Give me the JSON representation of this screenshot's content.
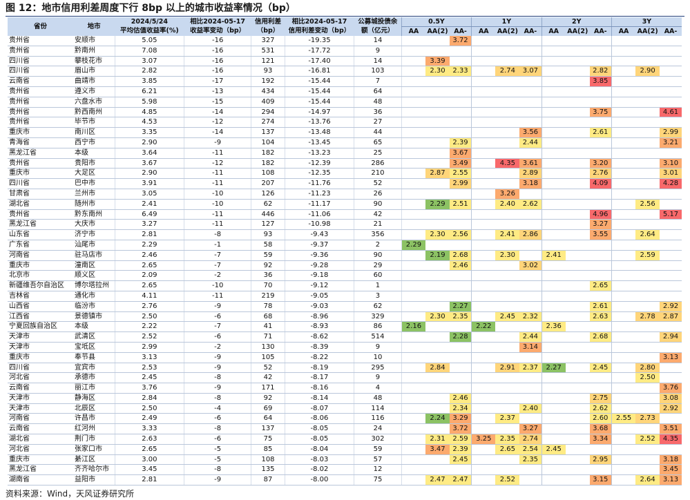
{
  "title": "图 12：地市信用利差周度下行 8bp 以上的城市收益率情况（bp）",
  "source": "资料来源：Wind，天风证券研究所",
  "header": {
    "province": "省份",
    "city": "地市",
    "c1_top": "2024/5/24",
    "c1_bottom": "平均估值收益率(%)",
    "c2_top": "相比2024-05-17",
    "c2_bottom": "收益率变动（bp）",
    "c3_top": "信用利差",
    "c3_bottom": "（bp）",
    "c4_top": "相比2024-05-17",
    "c4_bottom": "信用利差变动（bp）",
    "c5_top": "公募城投债余",
    "c5_bottom": "额（亿元）",
    "groups": [
      "0.5Y",
      "1Y",
      "2Y",
      "3Y"
    ],
    "ratings": [
      "AA",
      "AA(2)",
      "AA-"
    ]
  },
  "colors": {
    "header_bg": "#c9d9ef",
    "title_rule": "#1f3d7a",
    "scale": [
      "#8cc264",
      "#ffeb84",
      "#ffd57a",
      "#fcaa6e",
      "#f8696b"
    ]
  },
  "rows": [
    {
      "p": "贵州省",
      "c": "安顺市",
      "y": "5.05",
      "yc": "-16",
      "s": "327",
      "sc": "-19.35",
      "b": "14",
      "v": [
        "",
        "",
        "3.72",
        "",
        "",
        "",
        "",
        "",
        "",
        "",
        "",
        ""
      ]
    },
    {
      "p": "贵州省",
      "c": "黔南州",
      "y": "7.08",
      "yc": "-16",
      "s": "531",
      "sc": "-17.72",
      "b": "9",
      "v": [
        "",
        "",
        "",
        "",
        "",
        "",
        "",
        "",
        "",
        "",
        "",
        ""
      ]
    },
    {
      "p": "四川省",
      "c": "攀枝花市",
      "y": "3.07",
      "yc": "-16",
      "s": "121",
      "sc": "-17.40",
      "b": "14",
      "v": [
        "",
        "3.39",
        "",
        "",
        "",
        "",
        "",
        "",
        "",
        "",
        "",
        ""
      ]
    },
    {
      "p": "四川省",
      "c": "眉山市",
      "y": "2.82",
      "yc": "-16",
      "s": "93",
      "sc": "-16.81",
      "b": "103",
      "v": [
        "",
        "2.30",
        "2.33",
        "",
        "2.74",
        "3.07",
        "",
        "",
        "2.82",
        "",
        "2.90",
        ""
      ]
    },
    {
      "p": "云南省",
      "c": "曲靖市",
      "y": "3.85",
      "yc": "-17",
      "s": "192",
      "sc": "-15.44",
      "b": "7",
      "v": [
        "",
        "",
        "",
        "",
        "",
        "",
        "",
        "",
        "3.85",
        "",
        "",
        ""
      ]
    },
    {
      "p": "贵州省",
      "c": "遵义市",
      "y": "6.21",
      "yc": "-13",
      "s": "434",
      "sc": "-15.44",
      "b": "64",
      "v": [
        "",
        "",
        "",
        "",
        "",
        "",
        "",
        "",
        "",
        "",
        "",
        ""
      ]
    },
    {
      "p": "贵州省",
      "c": "六盘水市",
      "y": "5.98",
      "yc": "-15",
      "s": "409",
      "sc": "-15.44",
      "b": "48",
      "v": [
        "",
        "",
        "",
        "",
        "",
        "",
        "",
        "",
        "",
        "",
        "",
        ""
      ]
    },
    {
      "p": "贵州省",
      "c": "黔西南州",
      "y": "4.85",
      "yc": "-14",
      "s": "294",
      "sc": "-14.97",
      "b": "36",
      "v": [
        "",
        "",
        "",
        "",
        "",
        "",
        "",
        "",
        "3.75",
        "",
        "",
        "4.61"
      ]
    },
    {
      "p": "贵州省",
      "c": "毕节市",
      "y": "4.53",
      "yc": "-12",
      "s": "274",
      "sc": "-13.76",
      "b": "27",
      "v": [
        "",
        "",
        "",
        "",
        "",
        "",
        "",
        "",
        "",
        "",
        "",
        ""
      ]
    },
    {
      "p": "重庆市",
      "c": "南川区",
      "y": "3.35",
      "yc": "-14",
      "s": "137",
      "sc": "-13.48",
      "b": "44",
      "v": [
        "",
        "",
        "",
        "",
        "",
        "3.56",
        "",
        "",
        "2.61",
        "",
        "",
        "2.99"
      ]
    },
    {
      "p": "青海省",
      "c": "西宁市",
      "y": "2.90",
      "yc": "-9",
      "s": "104",
      "sc": "-13.45",
      "b": "65",
      "v": [
        "",
        "",
        "2.39",
        "",
        "",
        "2.44",
        "",
        "",
        "",
        "",
        "",
        "3.21"
      ]
    },
    {
      "p": "黑龙江省",
      "c": "本级",
      "y": "3.64",
      "yc": "-11",
      "s": "182",
      "sc": "-13.23",
      "b": "25",
      "v": [
        "",
        "",
        "3.67",
        "",
        "",
        "",
        "",
        "",
        "",
        "",
        "",
        ""
      ]
    },
    {
      "p": "贵州省",
      "c": "贵阳市",
      "y": "3.67",
      "yc": "-12",
      "s": "182",
      "sc": "-12.39",
      "b": "286",
      "v": [
        "",
        "",
        "3.49",
        "",
        "4.35",
        "3.61",
        "",
        "",
        "3.20",
        "",
        "",
        "3.10"
      ]
    },
    {
      "p": "重庆市",
      "c": "大足区",
      "y": "2.90",
      "yc": "-11",
      "s": "108",
      "sc": "-12.35",
      "b": "210",
      "v": [
        "",
        "2.87",
        "2.55",
        "",
        "",
        "2.89",
        "",
        "",
        "2.76",
        "",
        "",
        "3.01"
      ]
    },
    {
      "p": "四川省",
      "c": "巴中市",
      "y": "3.91",
      "yc": "-11",
      "s": "207",
      "sc": "-11.76",
      "b": "52",
      "v": [
        "",
        "",
        "2.99",
        "",
        "",
        "3.18",
        "",
        "",
        "4.09",
        "",
        "",
        "4.28"
      ]
    },
    {
      "p": "甘肃省",
      "c": "兰州市",
      "y": "3.05",
      "yc": "-10",
      "s": "126",
      "sc": "-11.23",
      "b": "26",
      "v": [
        "",
        "",
        "",
        "",
        "3.26",
        "",
        "",
        "",
        "",
        "",
        "",
        ""
      ]
    },
    {
      "p": "湖北省",
      "c": "随州市",
      "y": "2.41",
      "yc": "-10",
      "s": "62",
      "sc": "-11.17",
      "b": "90",
      "v": [
        "",
        "2.29",
        "2.51",
        "",
        "2.40",
        "2.62",
        "",
        "",
        "",
        "",
        "2.56",
        ""
      ]
    },
    {
      "p": "贵州省",
      "c": "黔东南州",
      "y": "6.49",
      "yc": "-11",
      "s": "446",
      "sc": "-11.06",
      "b": "42",
      "v": [
        "",
        "",
        "",
        "",
        "",
        "",
        "",
        "",
        "4.96",
        "",
        "",
        "5.17"
      ]
    },
    {
      "p": "黑龙江省",
      "c": "大庆市",
      "y": "3.27",
      "yc": "-11",
      "s": "127",
      "sc": "-10.98",
      "b": "21",
      "v": [
        "",
        "",
        "",
        "",
        "",
        "",
        "",
        "",
        "3.27",
        "",
        "",
        ""
      ]
    },
    {
      "p": "山东省",
      "c": "济宁市",
      "y": "2.81",
      "yc": "-8",
      "s": "93",
      "sc": "-9.43",
      "b": "356",
      "v": [
        "",
        "2.30",
        "2.56",
        "",
        "2.41",
        "2.86",
        "",
        "",
        "3.55",
        "",
        "2.64",
        ""
      ]
    },
    {
      "p": "广东省",
      "c": "汕尾市",
      "y": "2.29",
      "yc": "-1",
      "s": "58",
      "sc": "-9.37",
      "b": "2",
      "v": [
        "2.29",
        "",
        "",
        "",
        "",
        "",
        "",
        "",
        "",
        "",
        "",
        ""
      ]
    },
    {
      "p": "河南省",
      "c": "驻马店市",
      "y": "2.46",
      "yc": "-7",
      "s": "59",
      "sc": "-9.36",
      "b": "90",
      "v": [
        "",
        "2.19",
        "2.68",
        "",
        "2.30",
        "",
        "2.41",
        "",
        "",
        "",
        "2.59",
        ""
      ]
    },
    {
      "p": "重庆市",
      "c": "潼南区",
      "y": "2.65",
      "yc": "-7",
      "s": "92",
      "sc": "-9.28",
      "b": "29",
      "v": [
        "",
        "",
        "2.46",
        "",
        "",
        "3.02",
        "",
        "",
        "",
        "",
        "",
        ""
      ]
    },
    {
      "p": "北京市",
      "c": "顺义区",
      "y": "2.09",
      "yc": "-2",
      "s": "36",
      "sc": "-9.18",
      "b": "60",
      "v": [
        "",
        "",
        "",
        "",
        "",
        "",
        "",
        "",
        "",
        "",
        "",
        ""
      ]
    },
    {
      "p": "新疆维吾尔自治区",
      "c": "博尔塔拉州",
      "y": "2.65",
      "yc": "-10",
      "s": "70",
      "sc": "-9.12",
      "b": "1",
      "v": [
        "",
        "",
        "",
        "",
        "",
        "",
        "",
        "",
        "2.65",
        "",
        "",
        ""
      ]
    },
    {
      "p": "吉林省",
      "c": "通化市",
      "y": "4.11",
      "yc": "-11",
      "s": "219",
      "sc": "-9.05",
      "b": "3",
      "v": [
        "",
        "",
        "",
        "",
        "",
        "",
        "",
        "",
        "",
        "",
        "",
        ""
      ]
    },
    {
      "p": "山西省",
      "c": "临汾市",
      "y": "2.76",
      "yc": "-9",
      "s": "78",
      "sc": "-9.03",
      "b": "62",
      "v": [
        "",
        "",
        "2.27",
        "",
        "",
        "",
        "",
        "",
        "2.61",
        "",
        "",
        "2.92"
      ]
    },
    {
      "p": "江西省",
      "c": "景德镇市",
      "y": "2.50",
      "yc": "-6",
      "s": "68",
      "sc": "-8.96",
      "b": "329",
      "v": [
        "",
        "2.30",
        "2.35",
        "",
        "2.45",
        "2.32",
        "",
        "",
        "2.63",
        "",
        "2.78",
        "2.87"
      ]
    },
    {
      "p": "宁夏回族自治区",
      "c": "本级",
      "y": "2.22",
      "yc": "-7",
      "s": "41",
      "sc": "-8.93",
      "b": "86",
      "v": [
        "2.16",
        "",
        "",
        "2.22",
        "",
        "",
        "2.36",
        "",
        "",
        "",
        "",
        ""
      ]
    },
    {
      "p": "天津市",
      "c": "武清区",
      "y": "2.52",
      "yc": "-6",
      "s": "71",
      "sc": "-8.62",
      "b": "514",
      "v": [
        "",
        "",
        "2.28",
        "",
        "",
        "2.44",
        "",
        "",
        "2.68",
        "",
        "",
        "2.94"
      ]
    },
    {
      "p": "天津市",
      "c": "宝坻区",
      "y": "2.99",
      "yc": "-2",
      "s": "130",
      "sc": "-8.39",
      "b": "9",
      "v": [
        "",
        "",
        "",
        "",
        "",
        "3.14",
        "",
        "",
        "",
        "",
        "",
        ""
      ]
    },
    {
      "p": "重庆市",
      "c": "奉节县",
      "y": "3.13",
      "yc": "-9",
      "s": "105",
      "sc": "-8.22",
      "b": "10",
      "v": [
        "",
        "",
        "",
        "",
        "",
        "",
        "",
        "",
        "",
        "",
        "",
        "3.13"
      ]
    },
    {
      "p": "四川省",
      "c": "宜宾市",
      "y": "2.53",
      "yc": "-9",
      "s": "52",
      "sc": "-8.19",
      "b": "295",
      "v": [
        "",
        "2.84",
        "",
        "",
        "2.91",
        "2.37",
        "2.27",
        "",
        "2.45",
        "",
        "2.80",
        ""
      ]
    },
    {
      "p": "河北省",
      "c": "承德市",
      "y": "2.45",
      "yc": "-8",
      "s": "42",
      "sc": "-8.17",
      "b": "9",
      "v": [
        "",
        "",
        "",
        "",
        "",
        "",
        "",
        "",
        "",
        "",
        "2.50",
        ""
      ]
    },
    {
      "p": "云南省",
      "c": "丽江市",
      "y": "3.76",
      "yc": "-9",
      "s": "171",
      "sc": "-8.16",
      "b": "4",
      "v": [
        "",
        "",
        "",
        "",
        "",
        "",
        "",
        "",
        "",
        "",
        "",
        "3.76"
      ]
    },
    {
      "p": "天津市",
      "c": "静海区",
      "y": "2.84",
      "yc": "-8",
      "s": "92",
      "sc": "-8.14",
      "b": "48",
      "v": [
        "",
        "",
        "2.46",
        "",
        "",
        "",
        "",
        "",
        "2.75",
        "",
        "",
        "3.08"
      ]
    },
    {
      "p": "天津市",
      "c": "北辰区",
      "y": "2.50",
      "yc": "-4",
      "s": "69",
      "sc": "-8.07",
      "b": "114",
      "v": [
        "",
        "",
        "2.34",
        "",
        "",
        "2.40",
        "",
        "",
        "2.62",
        "",
        "",
        "2.92"
      ]
    },
    {
      "p": "河南省",
      "c": "许昌市",
      "y": "2.49",
      "yc": "-6",
      "s": "64",
      "sc": "-8.06",
      "b": "116",
      "v": [
        "",
        "2.24",
        "3.29",
        "",
        "2.37",
        "",
        "",
        "",
        "2.60",
        "2.55",
        "2.73",
        ""
      ]
    },
    {
      "p": "云南省",
      "c": "红河州",
      "y": "3.33",
      "yc": "-8",
      "s": "137",
      "sc": "-8.05",
      "b": "24",
      "v": [
        "",
        "",
        "3.72",
        "",
        "",
        "3.27",
        "",
        "",
        "3.68",
        "",
        "",
        "3.51"
      ]
    },
    {
      "p": "湖北省",
      "c": "荆门市",
      "y": "2.63",
      "yc": "-6",
      "s": "75",
      "sc": "-8.05",
      "b": "302",
      "v": [
        "",
        "2.31",
        "2.59",
        "3.25",
        "2.35",
        "2.74",
        "",
        "",
        "3.34",
        "",
        "2.52",
        "4.35"
      ]
    },
    {
      "p": "河北省",
      "c": "张家口市",
      "y": "2.65",
      "yc": "-5",
      "s": "85",
      "sc": "-8.04",
      "b": "59",
      "v": [
        "",
        "3.47",
        "2.39",
        "",
        "2.65",
        "2.54",
        "2.45",
        "",
        "",
        "",
        "",
        ""
      ]
    },
    {
      "p": "重庆市",
      "c": "綦江区",
      "y": "3.00",
      "yc": "-5",
      "s": "108",
      "sc": "-8.03",
      "b": "57",
      "v": [
        "",
        "",
        "2.45",
        "",
        "",
        "2.35",
        "",
        "",
        "2.95",
        "",
        "",
        "3.18"
      ]
    },
    {
      "p": "黑龙江省",
      "c": "齐齐哈尔市",
      "y": "3.45",
      "yc": "-8",
      "s": "135",
      "sc": "-8.02",
      "b": "12",
      "v": [
        "",
        "",
        "",
        "",
        "",
        "",
        "",
        "",
        "",
        "",
        "",
        "3.45"
      ]
    },
    {
      "p": "湖南省",
      "c": "益阳市",
      "y": "2.81",
      "yc": "-9",
      "s": "87",
      "sc": "-8.00",
      "b": "75",
      "v": [
        "",
        "2.47",
        "2.47",
        "",
        "2.52",
        "",
        "",
        "",
        "3.15",
        "",
        "2.64",
        "3.13"
      ]
    }
  ]
}
